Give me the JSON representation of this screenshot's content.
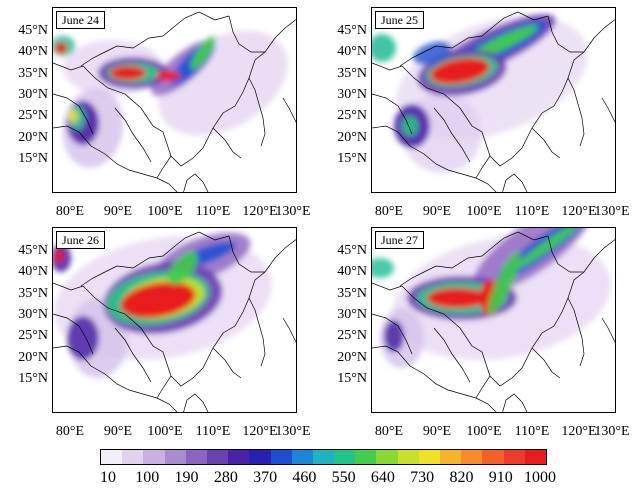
{
  "panels": [
    {
      "date": "June 24"
    },
    {
      "date": "June 25"
    },
    {
      "date": "June 26"
    },
    {
      "date": "June 27"
    }
  ],
  "lat_labels": [
    "45°N",
    "40°N",
    "35°N",
    "30°N",
    "25°N",
    "20°N",
    "15°N"
  ],
  "lon_labels": [
    "80°E",
    "90°E",
    "100°E",
    "110°E",
    "120°E",
    "130°E"
  ],
  "colorbar": {
    "ticks": [
      "10",
      "100",
      "190",
      "280",
      "370",
      "460",
      "550",
      "640",
      "730",
      "820",
      "910",
      "1000"
    ],
    "colors": [
      "#f4eef8",
      "#e2d2ee",
      "#c9b0e0",
      "#ab8ad0",
      "#8c63c0",
      "#6a3fb0",
      "#4a22a6",
      "#2a20b0",
      "#1f4fd0",
      "#1d86d8",
      "#20b2c0",
      "#22c48a",
      "#44cc4a",
      "#8ad833",
      "#c8e02a",
      "#f0e02a",
      "#f6b42a",
      "#f78a2a",
      "#f4602a",
      "#ee3a2a",
      "#e81c1c"
    ]
  }
}
